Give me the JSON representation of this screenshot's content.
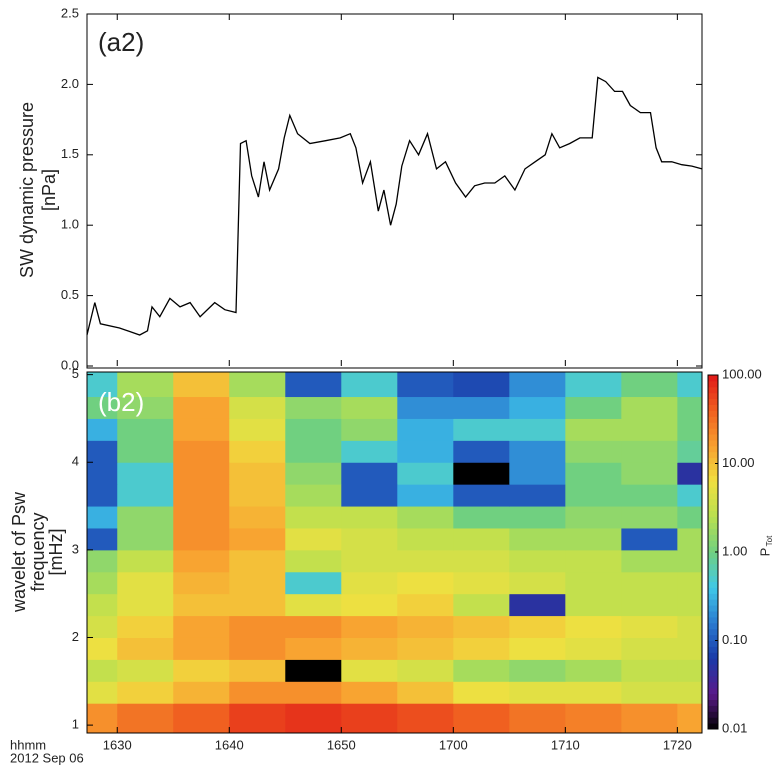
{
  "chart_data": [
    {
      "type": "line",
      "panel_label": "(a2)",
      "ylabel": "SW dynamic pressure",
      "ylabel_unit": "[nPa]",
      "color": "#000000",
      "x": [
        987.3,
        988.0,
        988.5,
        990.2,
        992.0,
        992.7,
        993.1,
        993.8,
        994.7,
        995.6,
        996.5,
        997.4,
        998.7,
        999.6,
        1000.6,
        1001.0,
        1001.5,
        1002.0,
        1002.6,
        1003.1,
        1003.6,
        1004.4,
        1004.9,
        1005.4,
        1006.1,
        1007.2,
        1008.6,
        1009.9,
        1010.8,
        1011.3,
        1011.9,
        1012.6,
        1013.3,
        1013.8,
        1014.4,
        1014.9,
        1015.4,
        1016.1,
        1016.9,
        1017.7,
        1018.5,
        1019.3,
        1020.2,
        1021.1,
        1021.9,
        1022.8,
        1023.7,
        1024.6,
        1025.5,
        1026.4,
        1027.3,
        1028.2,
        1028.8,
        1029.5,
        1030.4,
        1031.3,
        1032.4,
        1032.9,
        1033.6,
        1034.4,
        1035.1,
        1035.8,
        1036.7,
        1037.6,
        1038.1,
        1038.6,
        1039.5,
        1040.4,
        1041.3,
        1042.2
      ],
      "values": [
        0.22,
        0.45,
        0.3,
        0.27,
        0.22,
        0.25,
        0.42,
        0.35,
        0.48,
        0.42,
        0.45,
        0.35,
        0.45,
        0.4,
        0.38,
        1.58,
        1.6,
        1.35,
        1.2,
        1.45,
        1.25,
        1.4,
        1.62,
        1.78,
        1.65,
        1.58,
        1.6,
        1.62,
        1.65,
        1.55,
        1.3,
        1.45,
        1.1,
        1.25,
        1.0,
        1.15,
        1.42,
        1.6,
        1.5,
        1.65,
        1.4,
        1.45,
        1.3,
        1.2,
        1.28,
        1.3,
        1.3,
        1.35,
        1.25,
        1.4,
        1.45,
        1.5,
        1.65,
        1.55,
        1.58,
        1.62,
        1.62,
        2.05,
        2.02,
        1.95,
        1.95,
        1.85,
        1.8,
        1.8,
        1.55,
        1.45,
        1.45,
        1.43,
        1.42,
        1.4
      ],
      "xlim": [
        987.3,
        1042.2
      ],
      "ylim": [
        0,
        2.5
      ],
      "yticks": [
        {
          "value": 0,
          "label": "0.0"
        },
        0.5,
        {
          "value": 1,
          "label": "1.0"
        },
        1.5,
        {
          "value": 2,
          "label": "2.0"
        },
        2.5
      ]
    },
    {
      "type": "heatmap",
      "panel_label": "(b2)",
      "ylabel": "wavelet of Psw",
      "ylabel_line2": "frequency",
      "ylabel_unit": "[mHz]",
      "x_label": "hhmm",
      "date_label": "2012 Sep 06",
      "x_edges": [
        987.3,
        990,
        995,
        1000,
        1005,
        1010,
        1015,
        1020,
        1025,
        1030,
        1035,
        1040,
        1042.2
      ],
      "y_edges": [
        0.91,
        1.25,
        1.5,
        1.75,
        2,
        2.25,
        2.5,
        2.75,
        3,
        3.25,
        3.5,
        3.75,
        4,
        4.25,
        4.5,
        4.75,
        5.03
      ],
      "z": [
        [
          20,
          30,
          40,
          60,
          70,
          60,
          50,
          40,
          30,
          25,
          20,
          15
        ],
        [
          5,
          8,
          12,
          20,
          20,
          15,
          10,
          6,
          5,
          5,
          4,
          4
        ],
        [
          3,
          4,
          8,
          10,
          0.01,
          5,
          4,
          2,
          1.5,
          2,
          3,
          3
        ],
        [
          6,
          10,
          15,
          20,
          15,
          12,
          10,
          8,
          6,
          5,
          4,
          4
        ],
        [
          4,
          8,
          15,
          20,
          20,
          15,
          12,
          10,
          8,
          6,
          5,
          4
        ],
        [
          3,
          5,
          10,
          10,
          5,
          6,
          8,
          3,
          0.05,
          3,
          3,
          3
        ],
        [
          2,
          5,
          12,
          10,
          0.5,
          5,
          6,
          5,
          4,
          3,
          3,
          3
        ],
        [
          1.5,
          3,
          15,
          10,
          3,
          4,
          4,
          4,
          3,
          3,
          2,
          2
        ],
        [
          0.1,
          1.5,
          20,
          15,
          5,
          4,
          3,
          3,
          2,
          2,
          0.1,
          2
        ],
        [
          0.3,
          1.5,
          20,
          12,
          3,
          3,
          2,
          1,
          1,
          1.5,
          1.5,
          1
        ],
        [
          0.1,
          0.5,
          20,
          10,
          2,
          0.1,
          0.3,
          0.1,
          0.1,
          1,
          1,
          0.5
        ],
        [
          0.1,
          0.5,
          20,
          10,
          1.5,
          0.1,
          0.5,
          0.01,
          0.2,
          1,
          1.5,
          0.05
        ],
        [
          0.1,
          1,
          20,
          8,
          1,
          0.5,
          0.3,
          0.1,
          0.2,
          1.5,
          1.5,
          0.8
        ],
        [
          0.3,
          1,
          15,
          5,
          1,
          1.5,
          0.3,
          0.5,
          0.5,
          2,
          2,
          1
        ],
        [
          1,
          1.5,
          15,
          4,
          1.5,
          2,
          0.2,
          0.2,
          0.3,
          1,
          2,
          1
        ],
        [
          0.5,
          2,
          10,
          2,
          0.1,
          0.5,
          0.1,
          0.08,
          0.2,
          0.5,
          1,
          0.5
        ]
      ],
      "xlim": [
        987.3,
        1042.2
      ],
      "ylim": [
        0.91,
        5.03
      ],
      "xticks": [
        {
          "value": 990,
          "label": "1630"
        },
        {
          "value": 1000,
          "label": "1640"
        },
        {
          "value": 1010,
          "label": "1650"
        },
        {
          "value": 1020,
          "label": "1700"
        },
        {
          "value": 1030,
          "label": "1710"
        },
        {
          "value": 1040,
          "label": "1720"
        }
      ],
      "yticks": [
        1,
        2,
        3,
        4,
        5
      ],
      "colorbar_label": "P",
      "colorbar_label_sub": "Tot",
      "clim": [
        0.01,
        100
      ],
      "log_scale": true,
      "colorbar_ticks": [
        {
          "value": 0.01,
          "label": "0.01"
        },
        {
          "value": 0.1,
          "label": "0.10"
        },
        {
          "value": 1,
          "label": "1.00"
        },
        {
          "value": 10,
          "label": "10.00"
        },
        {
          "value": 100,
          "label": "100.00"
        }
      ],
      "colormap": [
        "#000000",
        "#5a1a8a",
        "#1a3aa8",
        "#2a7ad0",
        "#40c8e8",
        "#70d080",
        "#b8e050",
        "#f0e040",
        "#f8a030",
        "#f06020",
        "#e01818"
      ]
    }
  ]
}
